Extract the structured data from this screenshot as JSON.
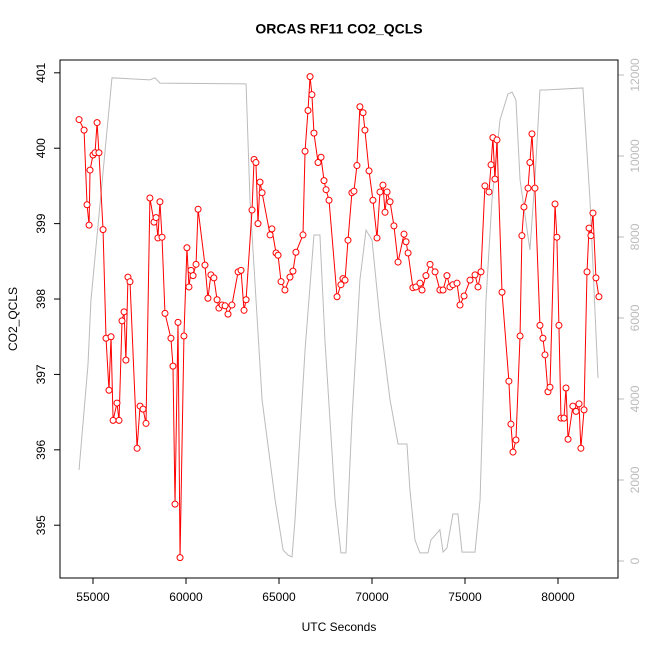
{
  "chart_data": {
    "type": "line",
    "title": "ORCAS RF11 CO2_QCLS",
    "xlabel": "UTC Seconds",
    "ylabel": "CO2_QCLS",
    "xlim": [
      53226,
      83226
    ],
    "xticks": [
      55000,
      60000,
      65000,
      70000,
      75000,
      80000
    ],
    "ylim": [
      394.3,
      401.17
    ],
    "yticks": [
      395,
      396,
      397,
      398,
      399,
      400,
      401
    ],
    "y2lim": [
      -420,
      12370
    ],
    "y2ticks": [
      0,
      2000,
      4000,
      6000,
      8000,
      10000,
      12000
    ],
    "y2color": "#bbbbbb",
    "series": [
      {
        "color": "#ff0000",
        "markers": true,
        "x": [
          54250,
          54520,
          54680,
          54790,
          54840,
          55000,
          55110,
          55220,
          55320,
          55540,
          55700,
          55860,
          55970,
          56080,
          56290,
          56400,
          56560,
          56670,
          56770,
          56880,
          56990,
          57370,
          57530,
          57690,
          57850,
          58060,
          58280,
          58390,
          58490,
          58600,
          58710,
          58870,
          59190,
          59300,
          59410,
          59570,
          59680,
          59890,
          60050,
          60160,
          60270,
          60380,
          60540,
          60650,
          61020,
          61180,
          61340,
          61500,
          61670,
          61770,
          61940,
          62100,
          62260,
          62470,
          62800,
          62960,
          63120,
          63230,
          63550,
          63660,
          63760,
          63870,
          63980,
          64090,
          64520,
          64620,
          64840,
          64950,
          65110,
          65320,
          65590,
          65750,
          65910,
          66290,
          66400,
          66560,
          66670,
          66770,
          66880,
          67100,
          67260,
          67420,
          67530,
          67690,
          68120,
          68330,
          68440,
          68550,
          68710,
          68920,
          69030,
          69190,
          69350,
          69520,
          69620,
          69840,
          70050,
          70270,
          70430,
          70590,
          70700,
          70810,
          70970,
          71180,
          71400,
          71720,
          71830,
          71940,
          72200,
          72360,
          72580,
          72690,
          72900,
          73120,
          73390,
          73650,
          73820,
          74030,
          74190,
          74350,
          74570,
          74730,
          74950,
          75270,
          75540,
          75700,
          75860,
          76070,
          76290,
          76400,
          76500,
          76610,
          76720,
          76990,
          77360,
          77470,
          77580,
          77740,
          77960,
          78060,
          78170,
          78390,
          78490,
          78600,
          78760,
          79030,
          79190,
          79300,
          79460,
          79570,
          79840,
          79940,
          80050,
          80160,
          80320,
          80430,
          80540,
          80800,
          80970,
          81130,
          81230,
          81400,
          81560,
          81670,
          81770,
          81880,
          82040,
          82200
        ],
        "values": [
          400.38,
          400.24,
          399.25,
          398.98,
          399.71,
          399.91,
          399.94,
          400.34,
          399.94,
          398.92,
          397.48,
          396.79,
          397.5,
          396.39,
          396.62,
          396.39,
          397.71,
          397.83,
          397.19,
          398.29,
          398.23,
          396.02,
          396.58,
          396.54,
          396.35,
          399.34,
          399.02,
          399.08,
          398.81,
          399.29,
          398.82,
          397.81,
          397.48,
          397.11,
          395.28,
          397.69,
          394.57,
          397.51,
          398.68,
          398.16,
          398.38,
          398.31,
          398.46,
          399.19,
          398.45,
          398.01,
          398.32,
          398.28,
          397.99,
          397.88,
          397.92,
          397.91,
          397.8,
          397.92,
          398.36,
          398.38,
          397.85,
          397.99,
          399.18,
          399.85,
          399.81,
          399.0,
          399.55,
          399.41,
          398.85,
          398.93,
          398.61,
          398.58,
          398.23,
          398.12,
          398.29,
          398.37,
          398.62,
          398.85,
          399.96,
          400.5,
          400.95,
          400.71,
          400.2,
          399.81,
          399.88,
          399.57,
          399.45,
          399.31,
          398.03,
          398.19,
          398.27,
          398.25,
          398.78,
          399.41,
          399.43,
          399.77,
          400.55,
          400.47,
          400.24,
          399.7,
          399.31,
          398.81,
          399.42,
          399.51,
          399.15,
          399.42,
          399.29,
          398.97,
          398.49,
          398.86,
          398.76,
          398.61,
          398.15,
          398.16,
          398.21,
          398.12,
          398.31,
          398.46,
          398.36,
          398.12,
          398.12,
          398.31,
          398.16,
          398.19,
          398.21,
          397.92,
          398.04,
          398.25,
          398.32,
          398.16,
          398.36,
          399.5,
          399.42,
          399.78,
          400.14,
          399.59,
          400.11,
          398.09,
          396.91,
          396.34,
          395.97,
          396.13,
          397.51,
          398.84,
          399.22,
          399.47,
          399.81,
          400.19,
          399.47,
          397.65,
          397.48,
          397.26,
          396.77,
          396.83,
          399.26,
          398.82,
          397.65,
          396.42,
          396.42,
          396.82,
          396.14,
          396.58,
          396.51,
          396.61,
          396.02,
          396.53,
          398.36,
          398.94,
          398.84,
          399.14,
          398.28,
          398.03
        ]
      },
      {
        "color": "#bbbbbb",
        "axis": "y2",
        "markers": false,
        "x": [
          54250,
          54570,
          54730,
          54890,
          56020,
          58060,
          58330,
          58600,
          63230,
          63440,
          64090,
          64790,
          65220,
          65480,
          65700,
          65860,
          66400,
          66880,
          67200,
          67470,
          68010,
          68330,
          68600,
          68920,
          69350,
          69680,
          70000,
          70430,
          70970,
          71400,
          71720,
          71880,
          72040,
          72310,
          72580,
          73010,
          73170,
          73650,
          73820,
          74030,
          74350,
          74620,
          74840,
          75540,
          75810,
          76130,
          76450,
          76880,
          77310,
          77530,
          77740,
          77960,
          78490,
          78760,
          79030,
          79300,
          81340,
          81720,
          82150
        ],
        "values": [
          2250,
          3980,
          4840,
          6440,
          11930,
          11880,
          11930,
          11800,
          11780,
          8910,
          3980,
          1510,
          270,
          150,
          100,
          1010,
          5210,
          8050,
          8050,
          5460,
          1510,
          200,
          200,
          3480,
          6940,
          8170,
          7930,
          5950,
          3980,
          2890,
          2890,
          2890,
          1750,
          520,
          200,
          200,
          520,
          770,
          220,
          320,
          1160,
          1160,
          220,
          220,
          1510,
          6440,
          8910,
          10890,
          11530,
          11580,
          11380,
          9410,
          7680,
          9410,
          11630,
          11630,
          11680,
          8910,
          4520
        ]
      }
    ]
  }
}
